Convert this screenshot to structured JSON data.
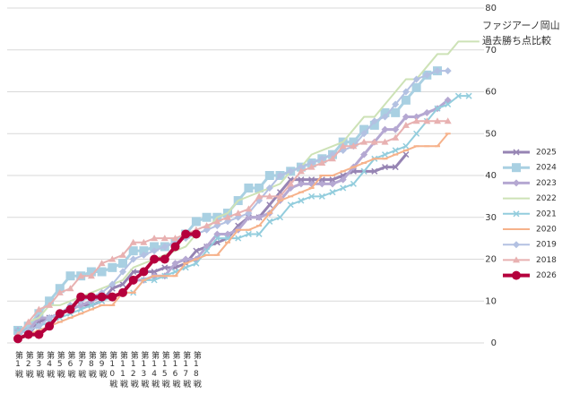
{
  "chart_data": {
    "type": "line",
    "title": "ファジアーノ岡山",
    "subtitle": "過去勝ち点比較",
    "categories": [
      "第1戦",
      "第2戦",
      "第3戦",
      "第4戦",
      "第5戦",
      "第6戦",
      "第7戦",
      "第8戦",
      "第9戦",
      "第10戦",
      "第11戦",
      "第12戦",
      "第13戦",
      "第14戦",
      "第15戦",
      "第16戦",
      "第17戦",
      "第18戦",
      null,
      null,
      null,
      null,
      null,
      null,
      null,
      null,
      null,
      null,
      null,
      null,
      null,
      null,
      null,
      null,
      null,
      null,
      null,
      null,
      null,
      null,
      null,
      null,
      null,
      null,
      null
    ],
    "ylim": [
      0,
      80
    ],
    "yticks": [
      0,
      10,
      20,
      30,
      40,
      50,
      60,
      70,
      80
    ],
    "grid": true,
    "series": [
      {
        "name": "2025",
        "color": "#9684b3",
        "marker": "x",
        "width": 3,
        "values": [
          1,
          2,
          5,
          6,
          7,
          8,
          9,
          9,
          10,
          13,
          14,
          17,
          17,
          17,
          18,
          18,
          19,
          22,
          23,
          24,
          25,
          28,
          30,
          30,
          33,
          36,
          39,
          39,
          39,
          39,
          39,
          40,
          41,
          41,
          41,
          42,
          42,
          45,
          null,
          null,
          null,
          null,
          null,
          null,
          null
        ]
      },
      {
        "name": "2024",
        "color": "#a9d0e2",
        "marker": "square",
        "width": 3,
        "values": [
          3,
          4,
          7,
          10,
          13,
          16,
          16,
          17,
          17,
          18,
          19,
          22,
          22,
          23,
          23,
          24,
          26,
          29,
          30,
          30,
          31,
          34,
          37,
          37,
          40,
          40,
          41,
          42,
          43,
          44,
          45,
          48,
          48,
          51,
          52,
          55,
          55,
          58,
          61,
          64,
          65,
          null,
          null,
          null,
          null
        ]
      },
      {
        "name": "2023",
        "color": "#b5a8d2",
        "marker": "diamond",
        "width": 3,
        "values": [
          3,
          3,
          6,
          6,
          7,
          8,
          9,
          10,
          11,
          11,
          12,
          15,
          15,
          16,
          16,
          19,
          20,
          20,
          23,
          26,
          26,
          27,
          30,
          30,
          31,
          34,
          37,
          38,
          38,
          38,
          38,
          39,
          42,
          45,
          48,
          51,
          51,
          54,
          54,
          55,
          56,
          58,
          null,
          null,
          null
        ]
      },
      {
        "name": "2022",
        "color": "#cde2b6",
        "marker": "none",
        "width": 2,
        "values": [
          2,
          5,
          6,
          9,
          9,
          10,
          11,
          12,
          13,
          14,
          15,
          18,
          19,
          20,
          21,
          22,
          23,
          26,
          27,
          30,
          31,
          34,
          35,
          36,
          37,
          38,
          41,
          42,
          45,
          46,
          47,
          48,
          51,
          54,
          54,
          57,
          60,
          63,
          63,
          66,
          69,
          69,
          72,
          72,
          72
        ]
      },
      {
        "name": "2021",
        "color": "#93cddd",
        "marker": "x",
        "width": 2,
        "values": [
          3,
          3,
          4,
          5,
          6,
          7,
          8,
          9,
          10,
          11,
          12,
          12,
          15,
          15,
          16,
          17,
          18,
          19,
          22,
          25,
          25,
          25,
          26,
          26,
          29,
          30,
          33,
          34,
          35,
          35,
          36,
          37,
          38,
          41,
          44,
          45,
          46,
          47,
          50,
          53,
          56,
          57,
          59,
          59,
          null
        ]
      },
      {
        "name": "2020",
        "color": "#f6b28b",
        "marker": "dash",
        "width": 2,
        "values": [
          1,
          2,
          3,
          4,
          5,
          6,
          7,
          8,
          9,
          9,
          12,
          12,
          15,
          16,
          16,
          16,
          19,
          20,
          21,
          21,
          24,
          27,
          27,
          28,
          31,
          34,
          35,
          36,
          37,
          40,
          40,
          41,
          42,
          43,
          44,
          44,
          45,
          46,
          47,
          47,
          47,
          50,
          null,
          null,
          null
        ]
      },
      {
        "name": "2019",
        "color": "#b3c1e2",
        "marker": "diamond",
        "width": 2,
        "values": [
          2,
          3,
          4,
          6,
          7,
          9,
          10,
          11,
          12,
          14,
          17,
          20,
          21,
          22,
          23,
          24,
          25,
          26,
          27,
          28,
          29,
          30,
          31,
          34,
          37,
          40,
          41,
          42,
          43,
          44,
          45,
          46,
          47,
          50,
          53,
          54,
          57,
          60,
          63,
          64,
          65,
          65,
          null,
          null,
          null
        ]
      },
      {
        "name": "2018",
        "color": "#e8b1b1",
        "marker": "triangle",
        "width": 2,
        "values": [
          2,
          5,
          8,
          9,
          12,
          13,
          16,
          16,
          19,
          20,
          21,
          24,
          24,
          25,
          25,
          25,
          26,
          27,
          28,
          29,
          30,
          31,
          32,
          35,
          35,
          35,
          38,
          41,
          42,
          43,
          44,
          47,
          47,
          48,
          48,
          48,
          49,
          52,
          53,
          53,
          53,
          53,
          null,
          null,
          null
        ]
      },
      {
        "name": "2026",
        "color": "#b5003d",
        "marker": "circle",
        "width": 4,
        "values": [
          1,
          2,
          2,
          4,
          7,
          8,
          11,
          11,
          11,
          11,
          12,
          15,
          17,
          20,
          20,
          23,
          26,
          26,
          null,
          null,
          null,
          null,
          null,
          null,
          null,
          null,
          null,
          null,
          null,
          null,
          null,
          null,
          null,
          null,
          null,
          null,
          null,
          null,
          null,
          null,
          null,
          null,
          null,
          null,
          null
        ]
      }
    ]
  }
}
